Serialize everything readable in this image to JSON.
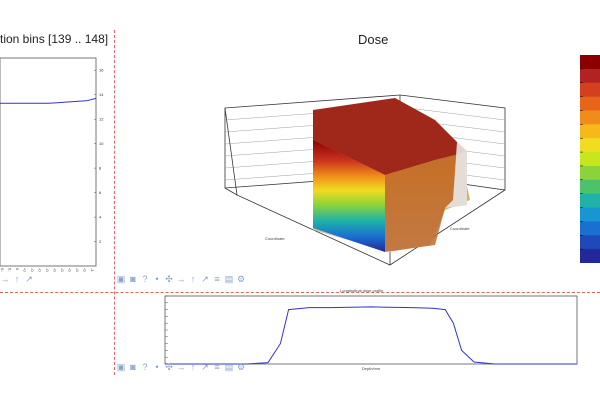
{
  "left_panel": {
    "title": "tion bins [139 .. 148]",
    "chart_data": {
      "type": "line",
      "title": "tion bins [139 .. 148]",
      "xlabel": "",
      "ylabel": "",
      "y_ticks": [
        "2",
        "4",
        "6",
        "8",
        "10",
        "12",
        "14",
        "16"
      ],
      "x_ticks": [
        "0.2",
        "0.1",
        "0",
        "-0.1",
        "-0.2",
        "-0.3",
        "-0.4",
        "-0.5",
        "-0.6",
        "-0.7",
        "-0.8",
        "-0.9",
        "-1"
      ],
      "ylim": [
        0,
        17
      ],
      "x": [
        0,
        1,
        2,
        3,
        4,
        5,
        6,
        7,
        8,
        9,
        10
      ],
      "values": [
        13.3,
        13.3,
        13.3,
        13.3,
        13.3,
        13.3,
        13.35,
        13.4,
        13.45,
        13.5,
        13.7
      ],
      "color": "#3333cc"
    }
  },
  "dose_panel": {
    "title": "Dose",
    "colorbar_colors": [
      "#8b0000",
      "#b22222",
      "#d2401e",
      "#e8641a",
      "#f08c1a",
      "#f7b81c",
      "#f0dc20",
      "#c8e61e",
      "#8cd23a",
      "#4cc36a",
      "#1fb3a8",
      "#1796d2",
      "#1a70d0",
      "#1f49b8",
      "#24289a"
    ],
    "x_axis_label": "Coordinate",
    "y_axis_label": "Coordinate"
  },
  "bottom_panel": {
    "title": "Longitudinal dose profile",
    "chart_data": {
      "type": "line",
      "title": "Longitudinal dose profile",
      "xlabel": "Depth/mm",
      "x": [
        0,
        10,
        20,
        25,
        28,
        30,
        35,
        40,
        50,
        60,
        65,
        68,
        70,
        72,
        75,
        80,
        90,
        100
      ],
      "values": [
        0.0,
        0.0,
        0.0,
        0.2,
        3.0,
        8.0,
        8.3,
        8.3,
        8.4,
        8.3,
        8.2,
        8.0,
        6.0,
        2.0,
        0.3,
        0.0,
        0.0,
        0.0
      ],
      "ylim": [
        0,
        10
      ],
      "color": "#3333cc"
    }
  },
  "toolbar_icons": [
    "zoom-icon",
    "camera-icon",
    "help-icon",
    "dot-icon",
    "move-icon",
    "arrow-right-icon",
    "arrow-up-icon",
    "arrow-up-right-icon",
    "menu-icon",
    "image-icon",
    "settings-icon"
  ]
}
